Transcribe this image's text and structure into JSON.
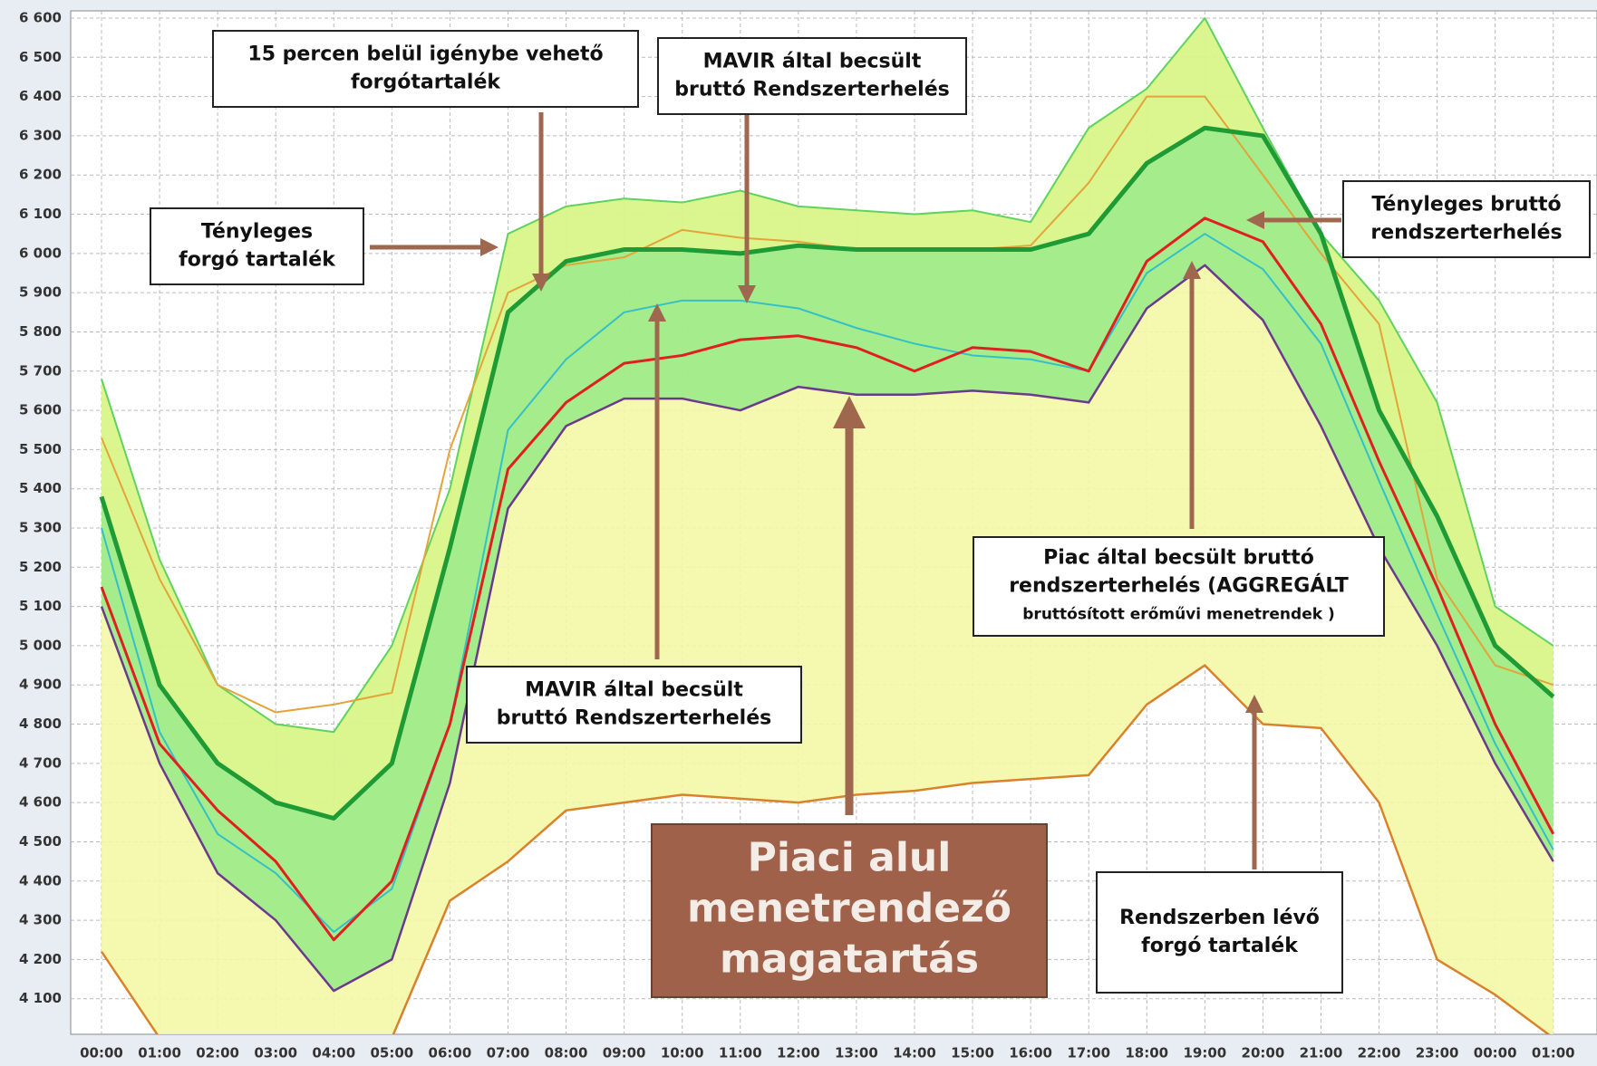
{
  "chart_data": {
    "type": "line",
    "categories": [
      "00:00",
      "01:00",
      "02:00",
      "03:00",
      "04:00",
      "05:00",
      "06:00",
      "07:00",
      "08:00",
      "09:00",
      "10:00",
      "11:00",
      "12:00",
      "13:00",
      "14:00",
      "15:00",
      "16:00",
      "17:00",
      "18:00",
      "19:00",
      "20:00",
      "21:00",
      "22:00",
      "23:00",
      "00:00",
      "01:00"
    ],
    "ylim": [
      4000,
      6600
    ],
    "yticks": [
      {
        "value": 4100,
        "label": "4 100"
      },
      {
        "value": 4200,
        "label": "4 200"
      },
      {
        "value": 4300,
        "label": "4 300"
      },
      {
        "value": 4400,
        "label": "4 400"
      },
      {
        "value": 4500,
        "label": "4 500"
      },
      {
        "value": 4600,
        "label": "4 600"
      },
      {
        "value": 4700,
        "label": "4 700"
      },
      {
        "value": 4800,
        "label": "4 800"
      },
      {
        "value": 4900,
        "label": "4 900"
      },
      {
        "value": 5000,
        "label": "5 000"
      },
      {
        "value": 5100,
        "label": "5 100"
      },
      {
        "value": 5200,
        "label": "5 200"
      },
      {
        "value": 5300,
        "label": "5 300"
      },
      {
        "value": 5400,
        "label": "5 400"
      },
      {
        "value": 5500,
        "label": "5 500"
      },
      {
        "value": 5600,
        "label": "5 600"
      },
      {
        "value": 5700,
        "label": "5 700"
      },
      {
        "value": 5800,
        "label": "5 800"
      },
      {
        "value": 5900,
        "label": "5 900"
      },
      {
        "value": 6000,
        "label": "6 000"
      },
      {
        "value": 6100,
        "label": "6 100"
      },
      {
        "value": 6200,
        "label": "6 200"
      },
      {
        "value": 6300,
        "label": "6 300"
      },
      {
        "value": 6400,
        "label": "6 400"
      },
      {
        "value": 6500,
        "label": "6 500"
      },
      {
        "value": 6600,
        "label": "6 600"
      }
    ],
    "grid": true,
    "series": [
      {
        "color": "#5fd35f",
        "width": 2,
        "values": [
          5680,
          5220,
          4900,
          4800,
          4780,
          5000,
          5400,
          6050,
          6120,
          6140,
          6130,
          6160,
          6120,
          6110,
          6100,
          6110,
          6080,
          6320,
          6420,
          6600,
          6320,
          6050,
          5880,
          5620,
          5100,
          5000
        ]
      },
      {
        "color": "#e3a43a",
        "width": 2,
        "values": [
          5530,
          5170,
          4900,
          4830,
          4850,
          4880,
          5500,
          5900,
          5970,
          5990,
          6060,
          6040,
          6030,
          6010,
          6010,
          6010,
          6020,
          6180,
          6400,
          6400,
          6200,
          6000,
          5820,
          5170,
          4950,
          4900
        ]
      },
      {
        "color": "#d9822b",
        "width": 2.5,
        "values": [
          4220,
          4000,
          4000,
          4000,
          4000,
          4000,
          4350,
          4450,
          4580,
          4600,
          4620,
          4610,
          4600,
          4620,
          4630,
          4650,
          4660,
          4670,
          4850,
          4950,
          4800,
          4790,
          4600,
          4200,
          4110,
          4000
        ]
      },
      {
        "color": "#1f9b35",
        "width": 5,
        "values": [
          5380,
          4900,
          4700,
          4600,
          4560,
          4700,
          5250,
          5850,
          5980,
          6010,
          6010,
          6000,
          6020,
          6010,
          6010,
          6010,
          6010,
          6050,
          6230,
          6320,
          6300,
          6050,
          5600,
          5330,
          5000,
          4870
        ]
      },
      {
        "color": "#6b3a8c",
        "width": 2.5,
        "values": [
          5100,
          4700,
          4420,
          4300,
          4120,
          4200,
          4650,
          5350,
          5560,
          5630,
          5630,
          5600,
          5660,
          5640,
          5640,
          5650,
          5640,
          5620,
          5860,
          5970,
          5830,
          5560,
          5250,
          5000,
          4700,
          4450
        ]
      },
      {
        "color": "#35c0c8",
        "width": 2,
        "values": [
          5300,
          4780,
          4520,
          4420,
          4270,
          4380,
          4800,
          5550,
          5730,
          5850,
          5880,
          5880,
          5860,
          5810,
          5770,
          5740,
          5730,
          5700,
          5950,
          6050,
          5960,
          5770,
          5420,
          5080,
          4750,
          4480
        ]
      },
      {
        "color": "#e02020",
        "width": 3,
        "values": [
          5150,
          4750,
          4580,
          4450,
          4250,
          4400,
          4800,
          5450,
          5620,
          5720,
          5740,
          5780,
          5790,
          5760,
          5700,
          5760,
          5750,
          5700,
          5980,
          6090,
          6030,
          5820,
          5470,
          5150,
          4800,
          4520
        ]
      }
    ],
    "annotations": [
      {
        "lines": [
          "15 percen belül igénybe vehető",
          "forgótartalék"
        ]
      },
      {
        "lines": [
          "MAVIR által becsült",
          "bruttó Rendszerterhelés"
        ]
      },
      {
        "lines": [
          "Tényleges",
          "forgó tartalék"
        ]
      },
      {
        "lines": [
          "Tényleges bruttó",
          "rendszerterhelés"
        ]
      },
      {
        "lines": [
          "MAVIR által becsült",
          "bruttó Rendszerterhelés"
        ]
      },
      {
        "lines": [
          "Piac által becsült bruttó",
          "rendszerterhelés (AGGREGÁLT",
          "bruttósított erőművi menetrendek )"
        ]
      },
      {
        "lines": [
          "Piaci alul",
          "menetrendező",
          "magatartás"
        ]
      },
      {
        "lines": [
          "Rendszerben lévő",
          "forgó tartalék"
        ]
      }
    ]
  }
}
